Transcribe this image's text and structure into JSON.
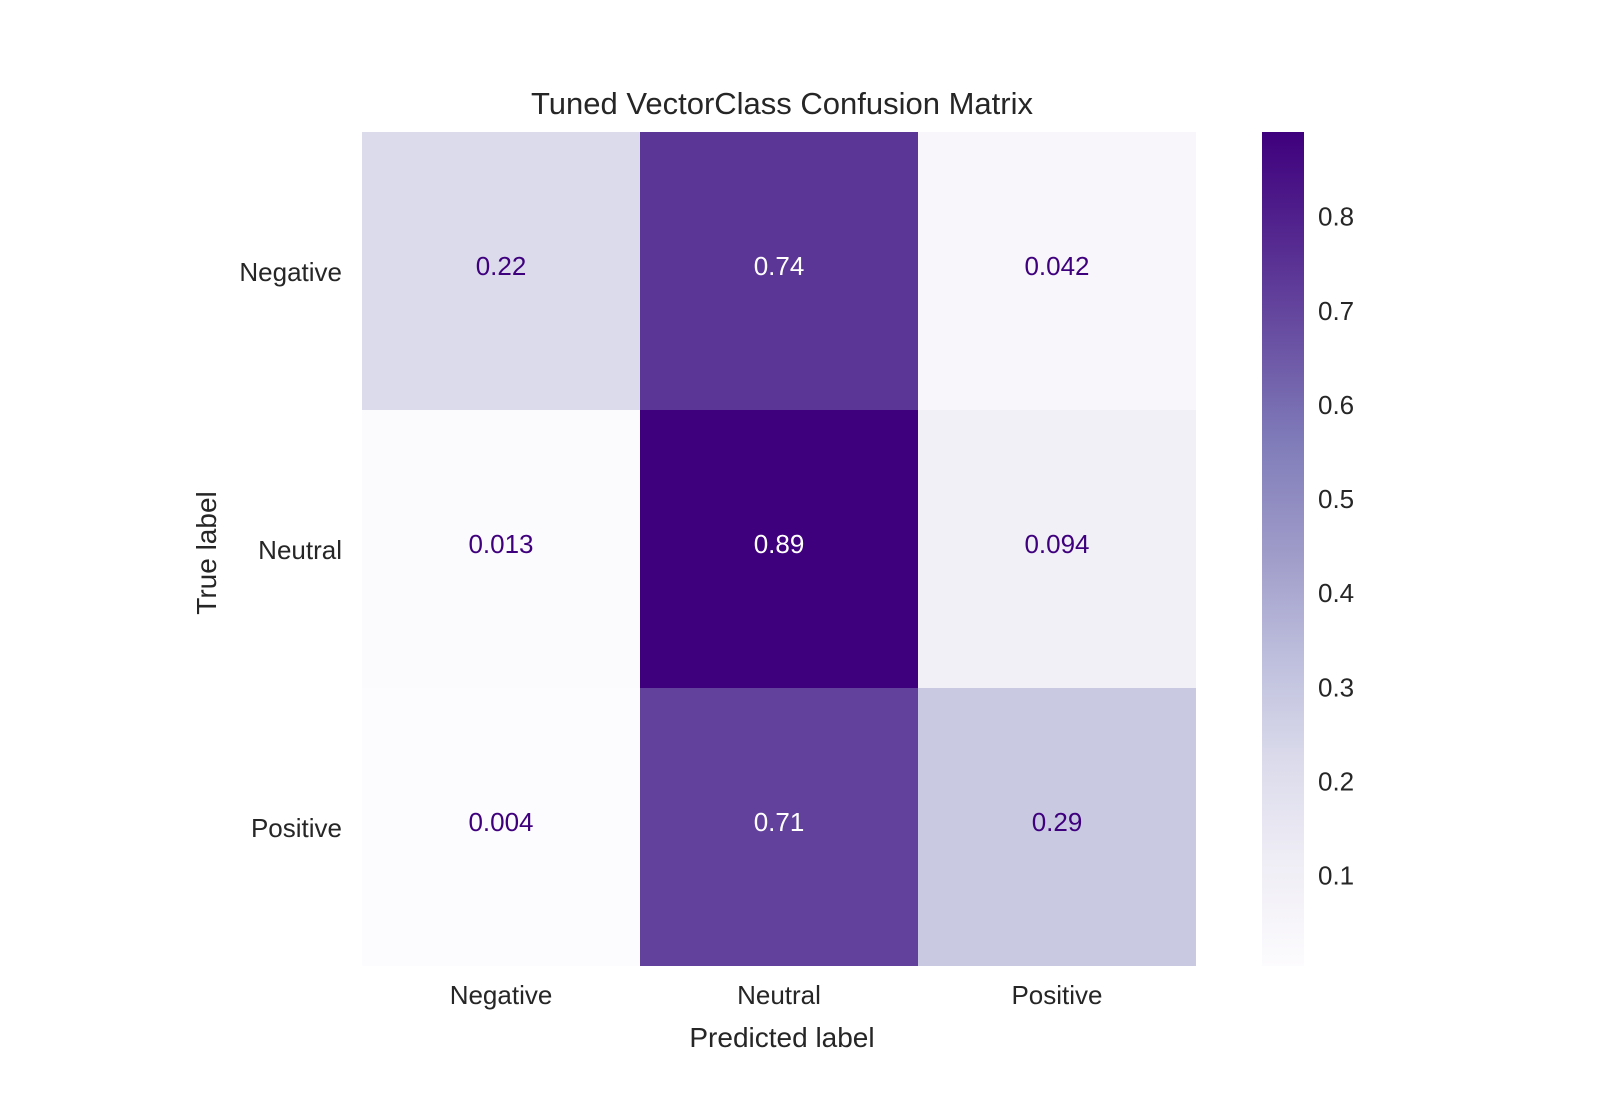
{
  "chart_data": {
    "type": "heatmap",
    "title": "Tuned VectorClass Confusion Matrix",
    "xlabel": "Predicted label",
    "ylabel": "True label",
    "x_categories": [
      "Negative",
      "Neutral",
      "Positive"
    ],
    "y_categories": [
      "Negative",
      "Neutral",
      "Positive"
    ],
    "values": [
      [
        0.22,
        0.74,
        0.042
      ],
      [
        0.013,
        0.89,
        0.094
      ],
      [
        0.004,
        0.71,
        0.29
      ]
    ],
    "value_labels": [
      [
        "0.22",
        "0.74",
        "0.042"
      ],
      [
        "0.013",
        "0.89",
        "0.094"
      ],
      [
        "0.004",
        "0.71",
        "0.29"
      ]
    ],
    "colorscale": "Purples",
    "colorbar": {
      "range": [
        0.004,
        0.89
      ],
      "ticks": [
        0.1,
        0.2,
        0.3,
        0.4,
        0.5,
        0.6,
        0.7,
        0.8
      ],
      "tick_labels": [
        "0.1",
        "0.2",
        "0.3",
        "0.4",
        "0.5",
        "0.6",
        "0.7",
        "0.8"
      ]
    },
    "grid": false
  }
}
